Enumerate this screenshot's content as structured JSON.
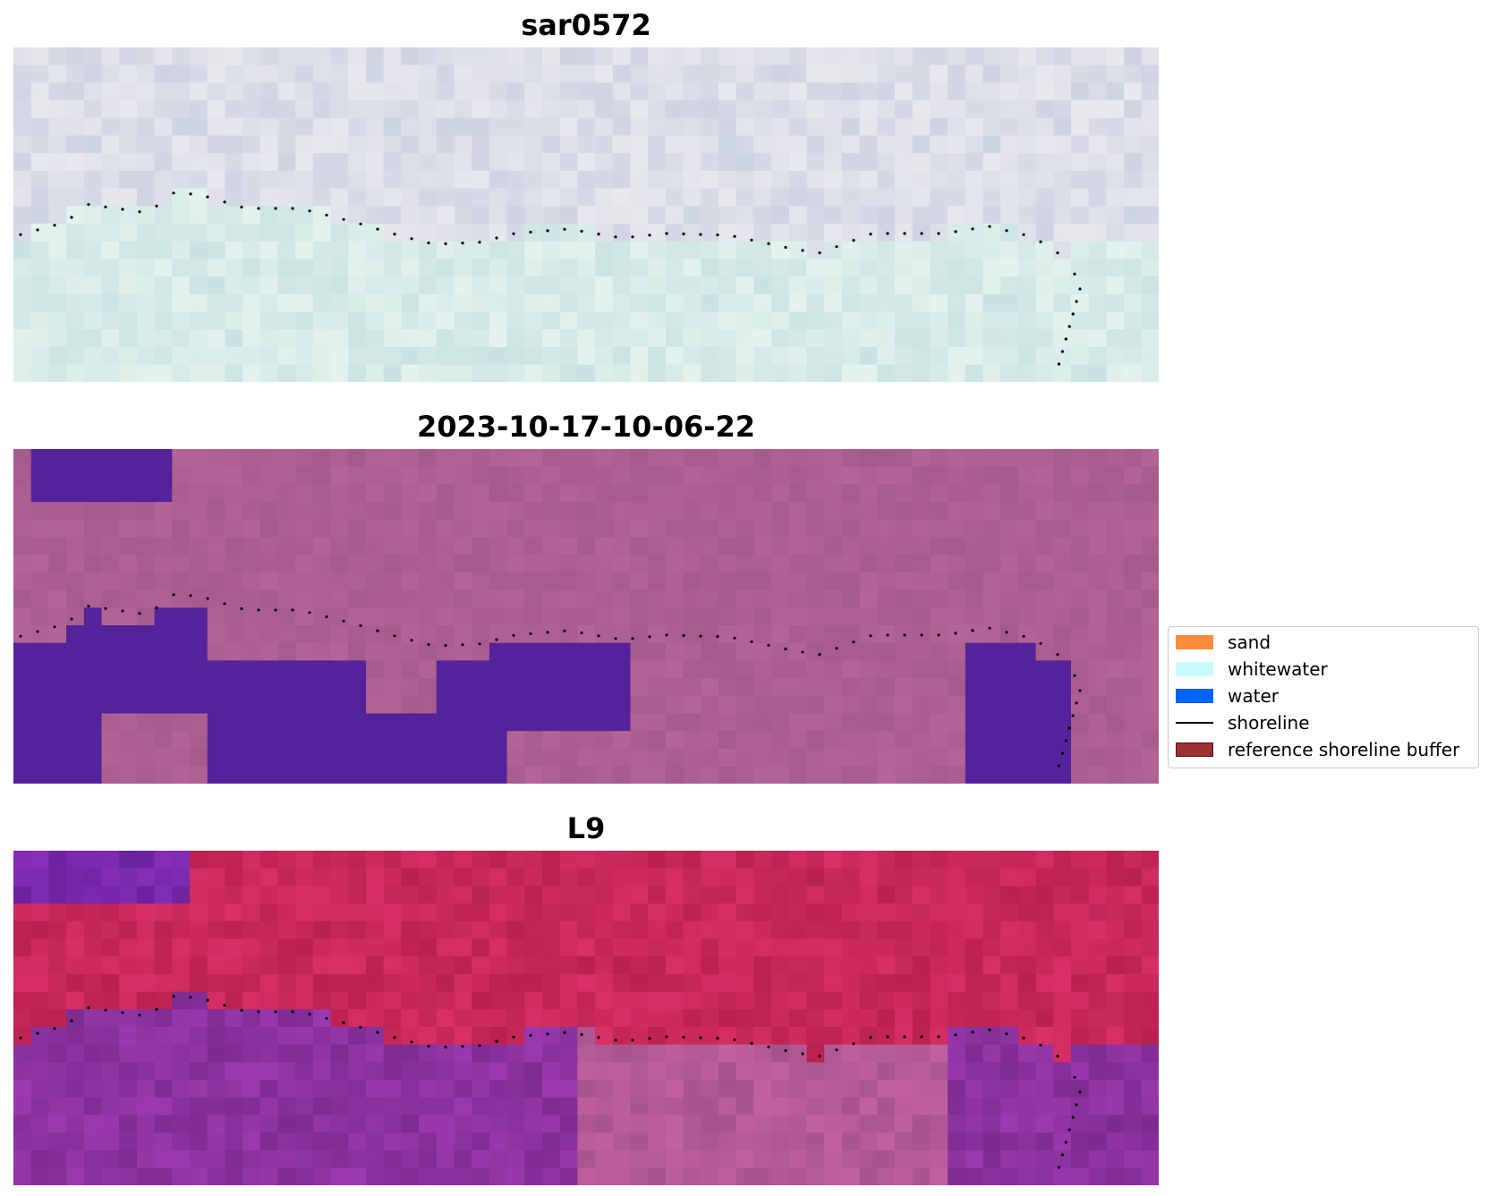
{
  "panels": [
    {
      "title": "sar0572",
      "style": "rgb"
    },
    {
      "title": "2023-10-17-10-06-22",
      "style": "classified"
    },
    {
      "title": "L9",
      "style": "index"
    }
  ],
  "legend": {
    "items": [
      {
        "label": "sand",
        "kind": "patch",
        "color": "#ff8c3c"
      },
      {
        "label": "whitewater",
        "kind": "patch",
        "color": "#c8fcfc"
      },
      {
        "label": "water",
        "kind": "patch",
        "color": "#0064ff"
      },
      {
        "label": "shoreline",
        "kind": "line",
        "color": "#000000"
      },
      {
        "label": "reference shoreline buffer",
        "kind": "patch",
        "color": "#9b3033",
        "border": "#5a1010"
      }
    ]
  },
  "colors": {
    "classified_land": "#ac5f91",
    "classified_water": "#54229b",
    "shoreline_dots": "#000000"
  }
}
